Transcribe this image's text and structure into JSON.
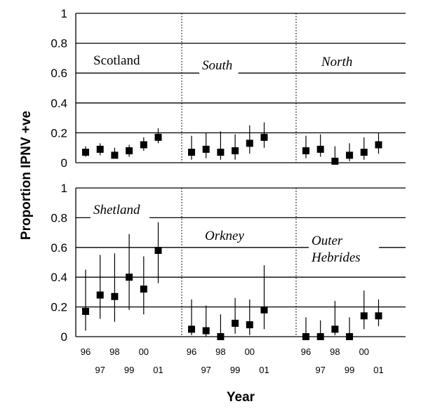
{
  "chart_data": {
    "type": "scatter",
    "ylabel": "Proportion IPNV +ve",
    "xlabel": "Year",
    "ylim": [
      0,
      1
    ],
    "yticks": [
      "0",
      "0.2",
      "0.4",
      "0.6",
      "0.8",
      "1"
    ],
    "grid": true,
    "year_labels_upper": [
      "96",
      "98",
      "00"
    ],
    "year_labels_lower": [
      "97",
      "99",
      "01"
    ],
    "panels": [
      {
        "regions": [
          {
            "label": "Scotland",
            "italic": false,
            "years": [
              "96",
              "97",
              "98",
              "99",
              "00",
              "01"
            ],
            "values": [
              0.07,
              0.09,
              0.05,
              0.08,
              0.12,
              0.17
            ],
            "lower": [
              0.04,
              0.05,
              0.03,
              0.04,
              0.08,
              0.13
            ],
            "upper": [
              0.11,
              0.13,
              0.1,
              0.12,
              0.17,
              0.23
            ]
          },
          {
            "label": "South",
            "italic": true,
            "years": [
              "96",
              "97",
              "98",
              "99",
              "00",
              "01"
            ],
            "values": [
              0.07,
              0.09,
              0.07,
              0.08,
              0.13,
              0.17
            ],
            "lower": [
              0.02,
              0.03,
              0.02,
              0.02,
              0.06,
              0.1
            ],
            "upper": [
              0.18,
              0.2,
              0.21,
              0.19,
              0.25,
              0.27
            ]
          },
          {
            "label": "North",
            "italic": true,
            "years": [
              "96",
              "97",
              "98",
              "99",
              "00",
              "01"
            ],
            "values": [
              0.08,
              0.09,
              0.01,
              0.05,
              0.07,
              0.12
            ],
            "lower": [
              0.03,
              0.04,
              0.0,
              0.01,
              0.02,
              0.06
            ],
            "upper": [
              0.18,
              0.19,
              0.11,
              0.13,
              0.17,
              0.2
            ]
          }
        ]
      },
      {
        "regions": [
          {
            "label": "Shetland",
            "italic": true,
            "years": [
              "96",
              "97",
              "98",
              "99",
              "00",
              "01"
            ],
            "values": [
              0.17,
              0.28,
              0.27,
              0.4,
              0.32,
              0.58
            ],
            "lower": [
              0.04,
              0.12,
              0.1,
              0.18,
              0.15,
              0.36
            ],
            "upper": [
              0.45,
              0.55,
              0.56,
              0.69,
              0.54,
              0.77
            ]
          },
          {
            "label": "Orkney",
            "italic": true,
            "years": [
              "96",
              "97",
              "98",
              "99",
              "00",
              "01"
            ],
            "values": [
              0.05,
              0.04,
              0.0,
              0.09,
              0.08,
              0.18
            ],
            "lower": [
              0.01,
              0.0,
              0.0,
              0.02,
              0.01,
              0.05
            ],
            "upper": [
              0.25,
              0.21,
              0.15,
              0.26,
              0.25,
              0.48
            ]
          },
          {
            "label": "Outer Hebrides",
            "label_lines": [
              "Outer",
              "Hebrides"
            ],
            "italic": true,
            "years": [
              "96",
              "97",
              "98",
              "99",
              "00",
              "01"
            ],
            "values": [
              0.0,
              0.0,
              0.05,
              0.0,
              0.14,
              0.14
            ],
            "lower": [
              0.0,
              0.0,
              0.01,
              0.0,
              0.05,
              0.07
            ],
            "upper": [
              0.13,
              0.11,
              0.24,
              0.13,
              0.31,
              0.25
            ]
          }
        ]
      }
    ]
  }
}
